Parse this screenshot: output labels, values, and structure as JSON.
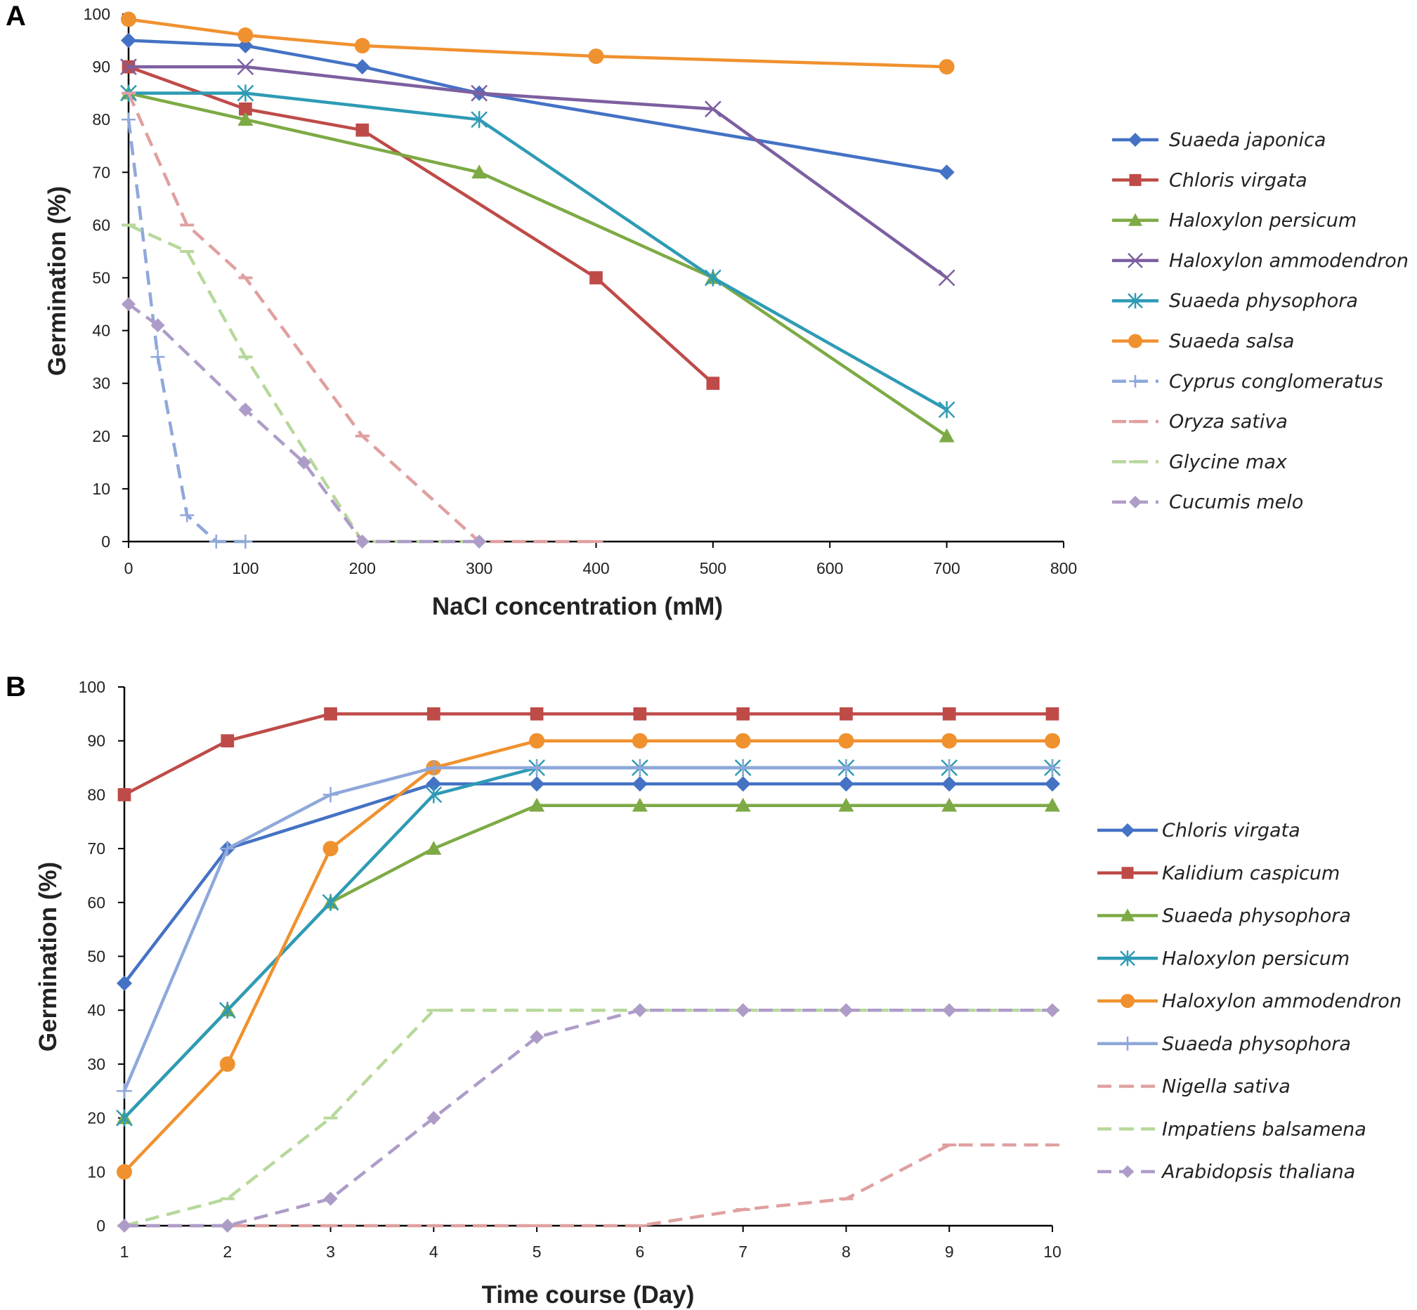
{
  "chart_data": [
    {
      "panel": "A",
      "type": "line",
      "xlabel": "NaCl concentration (mM)",
      "ylabel": "Germination (%)",
      "xlim": [
        0,
        800
      ],
      "ylim": [
        0,
        100
      ],
      "xticks": [
        0,
        100,
        200,
        300,
        400,
        500,
        600,
        700,
        800
      ],
      "yticks": [
        0,
        10,
        20,
        30,
        40,
        50,
        60,
        70,
        80,
        90,
        100
      ],
      "grid": false,
      "legend_position": "right",
      "series": [
        {
          "name": "Suaeda japonica",
          "color": "#4472C4",
          "marker": "diamond",
          "dashed": false,
          "x": [
            0,
            100,
            200,
            300,
            700
          ],
          "y": [
            95,
            94,
            90,
            85,
            70
          ]
        },
        {
          "name": "Chloris virgata",
          "color": "#BE4B48",
          "marker": "square",
          "dashed": false,
          "x": [
            0,
            100,
            200,
            400,
            500
          ],
          "y": [
            90,
            82,
            78,
            50,
            30
          ]
        },
        {
          "name": "Haloxylon persicum",
          "color": "#7DAA45",
          "marker": "triangle",
          "dashed": false,
          "x": [
            0,
            100,
            300,
            500,
            700
          ],
          "y": [
            85,
            80,
            70,
            50,
            20
          ]
        },
        {
          "name": "Haloxylon ammodendron",
          "color": "#7D5FA0",
          "marker": "x",
          "dashed": false,
          "x": [
            0,
            100,
            300,
            500,
            700
          ],
          "y": [
            90,
            90,
            85,
            82,
            50
          ]
        },
        {
          "name": "Suaeda physophora",
          "color": "#2E9BB5",
          "marker": "asterisk",
          "dashed": false,
          "x": [
            0,
            100,
            300,
            500,
            700
          ],
          "y": [
            85,
            85,
            80,
            50,
            25
          ]
        },
        {
          "name": "Suaeda salsa",
          "color": "#F0912F",
          "marker": "circle",
          "dashed": false,
          "x": [
            0,
            100,
            200,
            400,
            700
          ],
          "y": [
            99,
            96,
            94,
            92,
            90
          ]
        },
        {
          "name": "Cyprus conglomeratus",
          "color": "#8FA8DA",
          "marker": "plus",
          "dashed": true,
          "x": [
            0,
            25,
            50,
            75,
            100
          ],
          "y": [
            80,
            35,
            5,
            0,
            0
          ]
        },
        {
          "name": "Oryza sativa",
          "color": "#E0A0A0",
          "marker": "dash",
          "dashed": true,
          "x": [
            0,
            50,
            100,
            200,
            300,
            400
          ],
          "y": [
            85,
            60,
            50,
            20,
            0,
            0
          ]
        },
        {
          "name": "Glycine max",
          "color": "#B7D89B",
          "marker": "dash",
          "dashed": true,
          "x": [
            0,
            50,
            100,
            200,
            300
          ],
          "y": [
            60,
            55,
            35,
            0,
            0
          ]
        },
        {
          "name": "Cucumis melo",
          "color": "#AE9CC8",
          "marker": "diamond",
          "dashed": true,
          "x": [
            0,
            25,
            100,
            150,
            200,
            300
          ],
          "y": [
            45,
            41,
            25,
            15,
            0,
            0
          ]
        }
      ]
    },
    {
      "panel": "B",
      "type": "line",
      "xlabel": "Time course (Day)",
      "ylabel": "Germination (%)",
      "xlim": [
        1,
        10
      ],
      "ylim": [
        0,
        100
      ],
      "xticks": [
        1,
        2,
        3,
        4,
        5,
        6,
        7,
        8,
        9,
        10
      ],
      "yticks": [
        0,
        10,
        20,
        30,
        40,
        50,
        60,
        70,
        80,
        90,
        100
      ],
      "grid": false,
      "legend_position": "right",
      "series": [
        {
          "name": "Chloris virgata",
          "color": "#4472C4",
          "marker": "diamond",
          "dashed": false,
          "x": [
            1,
            2,
            3,
            4,
            5,
            6,
            7,
            8,
            9,
            10
          ],
          "y": [
            45,
            70,
            76,
            82,
            82,
            82,
            82,
            82,
            82,
            82
          ],
          "marker_skip": [
            2
          ]
        },
        {
          "name": "Kalidium caspicum",
          "color": "#BE4B48",
          "marker": "square",
          "dashed": false,
          "x": [
            1,
            2,
            3,
            4,
            5,
            6,
            7,
            8,
            9,
            10
          ],
          "y": [
            80,
            90,
            95,
            95,
            95,
            95,
            95,
            95,
            95,
            95
          ]
        },
        {
          "name": "Suaeda physophora",
          "color": "#7DAA45",
          "marker": "triangle",
          "dashed": false,
          "x": [
            1,
            2,
            3,
            4,
            5,
            6,
            7,
            8,
            9,
            10
          ],
          "y": [
            20,
            40,
            60,
            70,
            78,
            78,
            78,
            78,
            78,
            78
          ]
        },
        {
          "name": "Haloxylon persicum",
          "color": "#2E9BB5",
          "marker": "asterisk",
          "dashed": false,
          "x": [
            1,
            2,
            3,
            4,
            5,
            6,
            7,
            8,
            9,
            10
          ],
          "y": [
            20,
            40,
            60,
            80,
            85,
            85,
            85,
            85,
            85,
            85
          ]
        },
        {
          "name": "Haloxylon ammodendron",
          "color": "#F0912F",
          "marker": "circle",
          "dashed": false,
          "x": [
            1,
            2,
            3,
            4,
            5,
            6,
            7,
            8,
            9,
            10
          ],
          "y": [
            10,
            30,
            70,
            85,
            90,
            90,
            90,
            90,
            90,
            90
          ]
        },
        {
          "name": "Suaeda physophora",
          "color": "#8FA8DA",
          "marker": "plus",
          "dashed": false,
          "x": [
            1,
            2,
            3,
            4,
            5,
            6,
            7,
            8,
            9,
            10
          ],
          "y": [
            25,
            70,
            80,
            85,
            85,
            85,
            85,
            85,
            85,
            85
          ]
        },
        {
          "name": "Nigella sativa",
          "color": "#E0A0A0",
          "marker": "dash",
          "dashed": true,
          "x": [
            1,
            2,
            3,
            4,
            5,
            6,
            7,
            8,
            9,
            10
          ],
          "y": [
            0,
            0,
            0,
            0,
            0,
            0,
            3,
            5,
            15,
            15
          ]
        },
        {
          "name": "Impatiens balsamena",
          "color": "#B7D89B",
          "marker": "dash",
          "dashed": true,
          "x": [
            1,
            2,
            3,
            4,
            5,
            6,
            7,
            8,
            9,
            10
          ],
          "y": [
            0,
            5,
            20,
            40,
            40,
            40,
            40,
            40,
            40,
            40
          ]
        },
        {
          "name": "Arabidopsis thaliana",
          "color": "#AE9CC8",
          "marker": "diamond",
          "dashed": true,
          "x": [
            1,
            2,
            3,
            4,
            5,
            6,
            7,
            8,
            9,
            10
          ],
          "y": [
            0,
            0,
            5,
            20,
            35,
            40,
            40,
            40,
            40,
            40
          ]
        }
      ]
    }
  ]
}
